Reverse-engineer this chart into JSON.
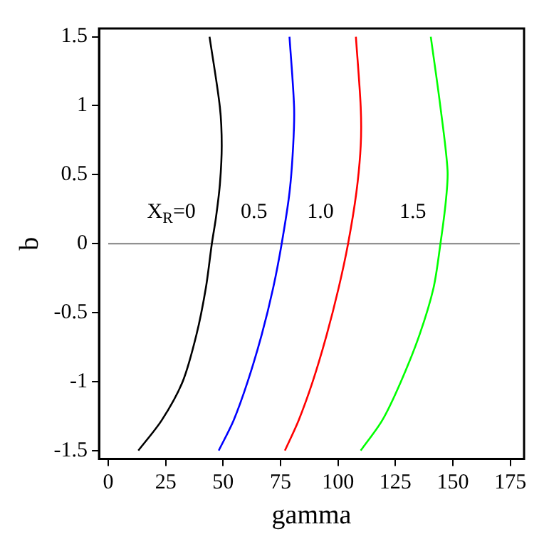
{
  "chart_data": {
    "type": "line",
    "xlabel": "gamma",
    "ylabel": "b",
    "xlim": [
      -4,
      181
    ],
    "ylim": [
      -1.56,
      1.56
    ],
    "xticks": [
      0,
      25,
      50,
      75,
      100,
      125,
      150,
      175
    ],
    "yticks": [
      -1.5,
      -1,
      -0.5,
      0,
      0.5,
      1,
      1.5
    ],
    "grid": false,
    "legend": false,
    "marker": "none",
    "line_style": "solid",
    "series": [
      {
        "name": "X$_{R}$=0",
        "color": "#000000",
        "x": [
          44.1,
          48.6,
          49.4,
          48.6,
          46.9,
          45.1,
          42.5,
          38.4,
          32.4,
          23.3,
          13.1
        ],
        "values": [
          1.5,
          0.99,
          0.71,
          0.43,
          0.19,
          0,
          -0.32,
          -0.66,
          -1.0,
          -1.28,
          -1.5
        ]
      },
      {
        "name": "0.5",
        "color": "#0000ff",
        "x": [
          78.9,
          80.9,
          80.5,
          78.9,
          75.5,
          71.8,
          66.8,
          60.7,
          54.6,
          48.1
        ],
        "values": [
          1.5,
          0.99,
          0.71,
          0.37,
          0,
          -0.32,
          -0.66,
          -1.0,
          -1.28,
          -1.5
        ]
      },
      {
        "name": "1.0",
        "color": "#ff0000",
        "x": [
          107.8,
          109.9,
          109.9,
          108,
          104.4,
          100.3,
          95.1,
          89,
          82.9,
          76.9
        ],
        "values": [
          1.5,
          0.99,
          0.71,
          0.37,
          0,
          -0.32,
          -0.66,
          -1.0,
          -1.28,
          -1.5
        ]
      },
      {
        "name": "1.5",
        "color": "#00ff00",
        "x": [
          140.4,
          144.6,
          147.7,
          146.9,
          144.6,
          141.6,
          135.5,
          127.4,
          119.3,
          109.9
        ],
        "values": [
          1.5,
          0.99,
          0.53,
          0.3,
          0,
          -0.32,
          -0.66,
          -1.0,
          -1.28,
          -1.5
        ]
      }
    ],
    "ref_lines": [
      {
        "axis": "y",
        "value": 0,
        "color": "#808080"
      }
    ]
  }
}
